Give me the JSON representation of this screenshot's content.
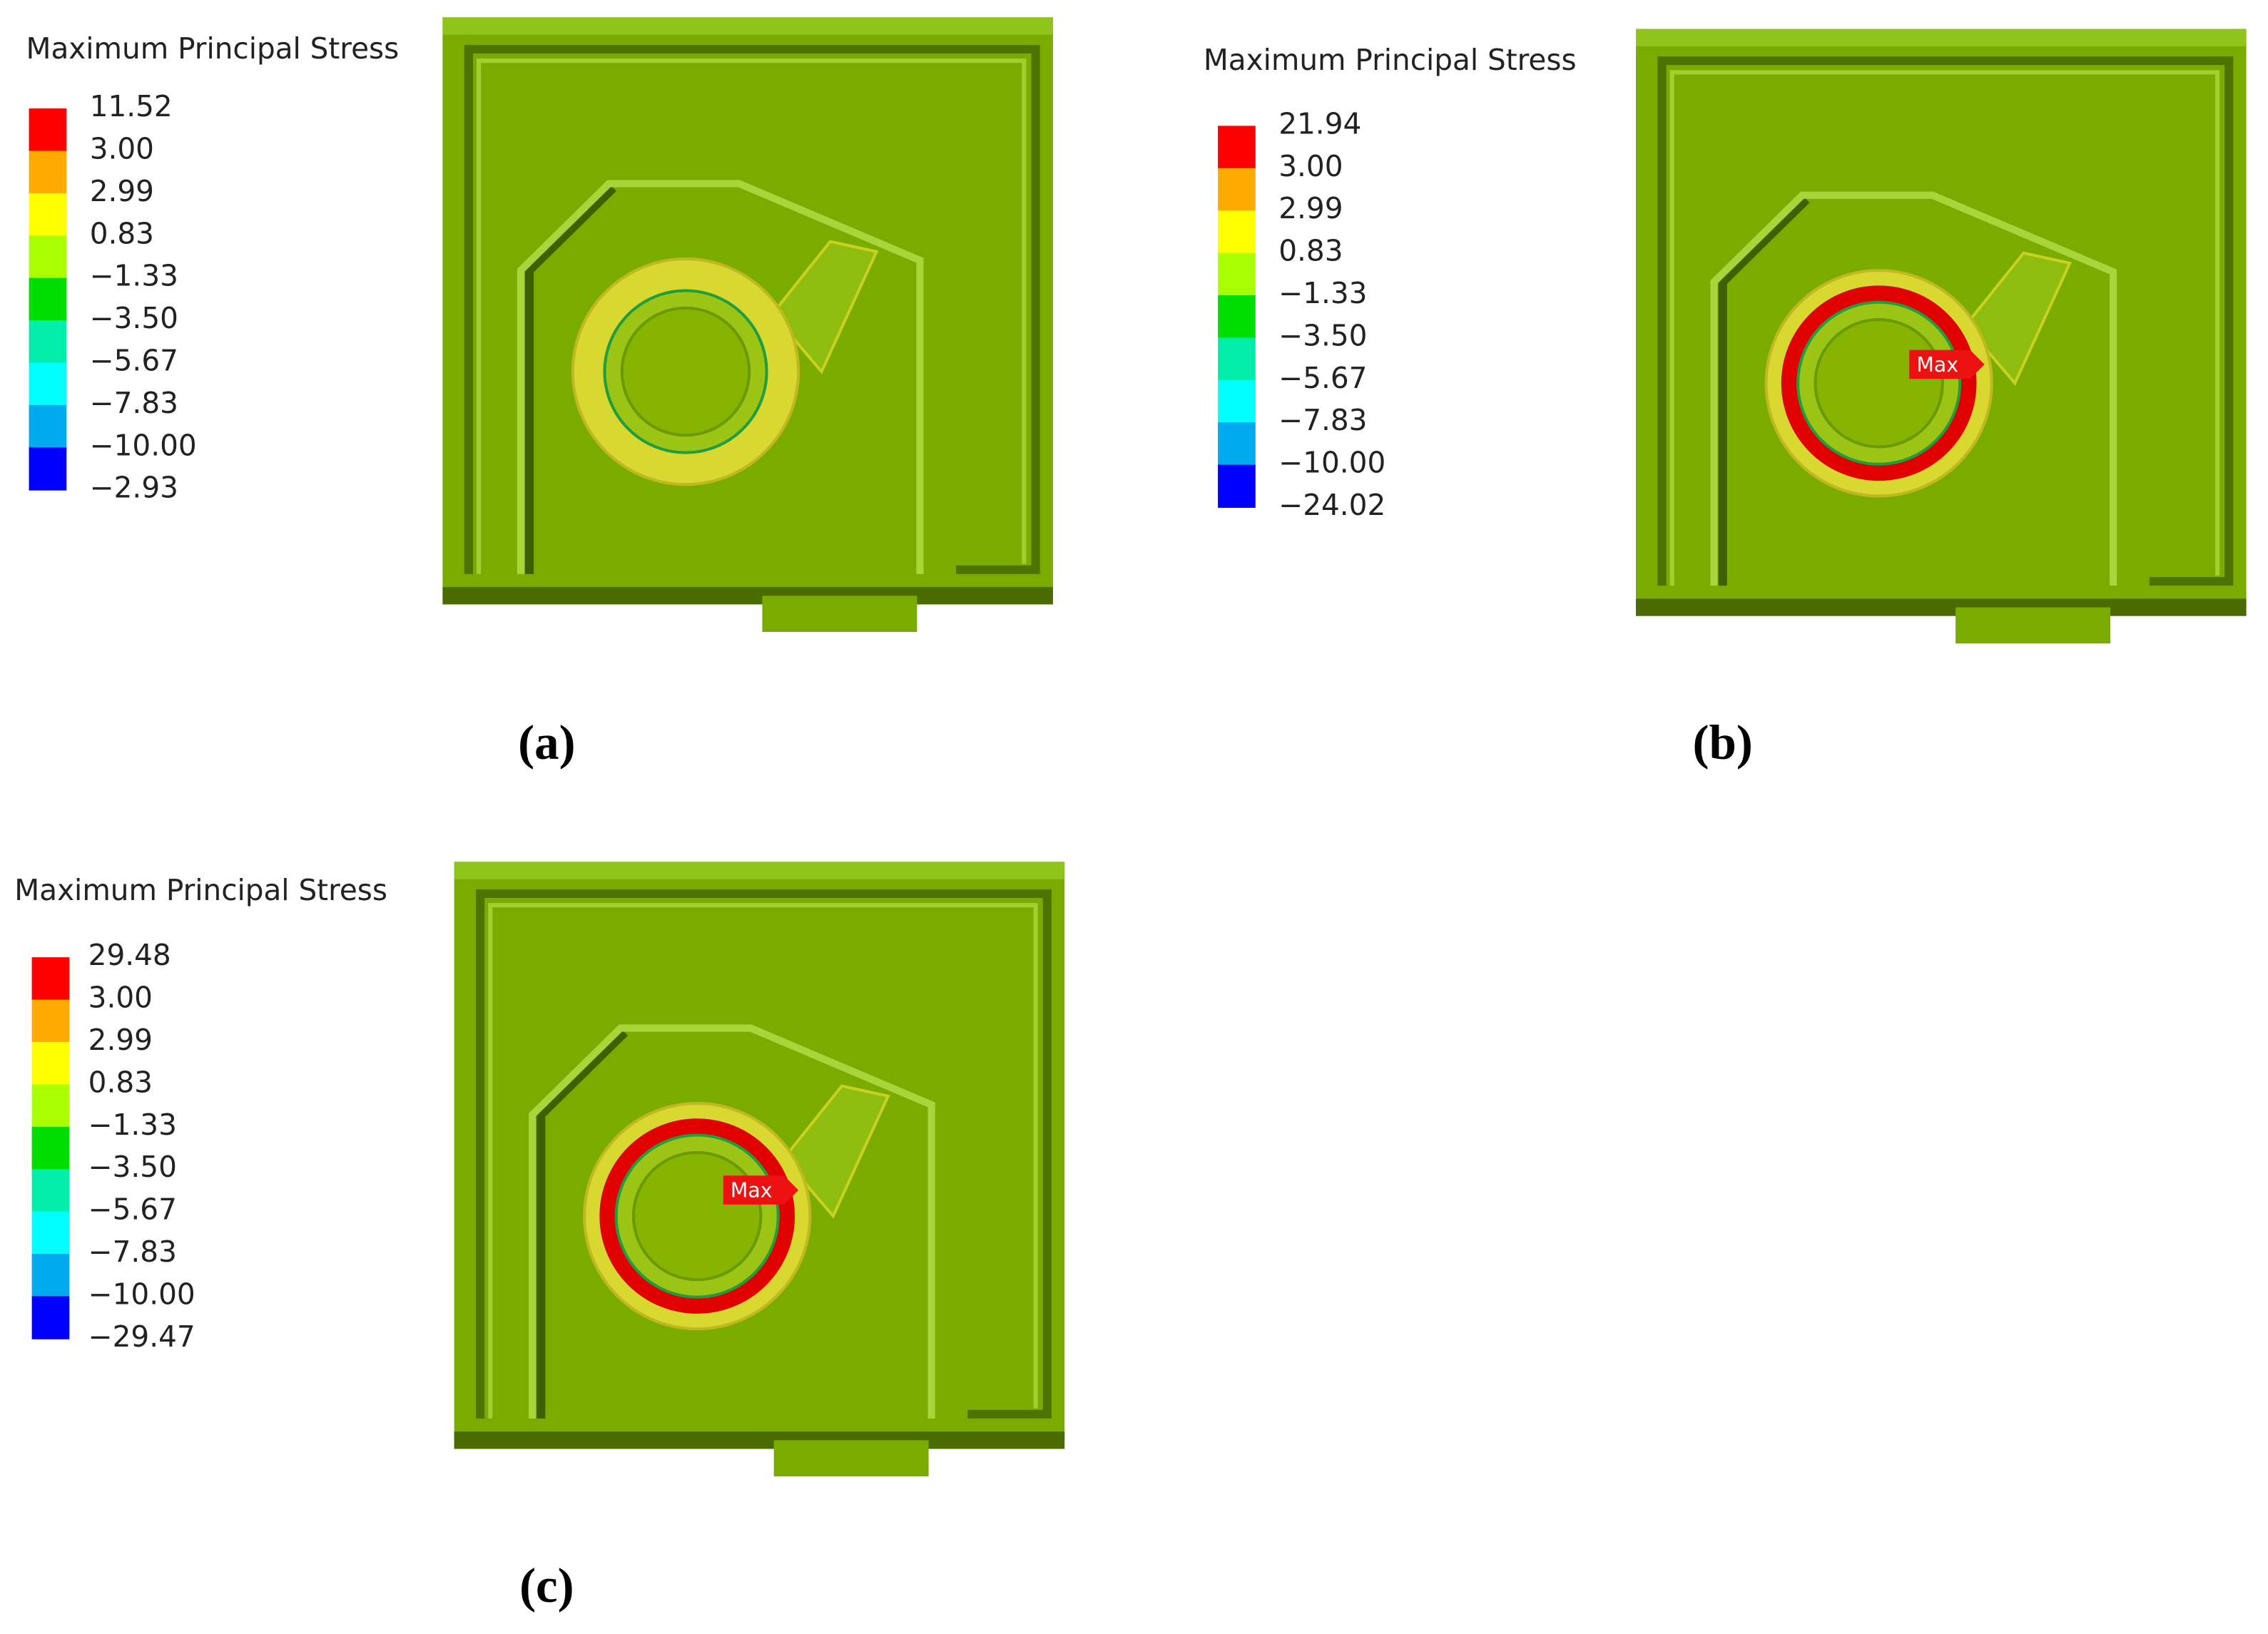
{
  "panels": [
    {
      "legend": {
        "title": "Maximum Principal Stress",
        "labels": [
          "11.52",
          "3.00",
          "2.99",
          "0.83",
          "−1.33",
          "−3.50",
          "−5.67",
          "−7.83",
          "−10.00",
          "−2.93"
        ]
      },
      "caption": "(a)"
    },
    {
      "legend": {
        "title": "Maximum Principal Stress",
        "labels": [
          "21.94",
          "3.00",
          "2.99",
          "0.83",
          "−1.33",
          "−3.50",
          "−5.67",
          "−7.83",
          "−10.00",
          "−24.02"
        ]
      },
      "max_label": "Max",
      "caption": "(b)"
    },
    {
      "legend": {
        "title": "Maximum Principal Stress",
        "labels": [
          "29.48",
          "3.00",
          "2.99",
          "0.83",
          "−1.33",
          "−3.50",
          "−5.67",
          "−7.83",
          "−10.00",
          "−29.47"
        ]
      },
      "max_label": "Max",
      "caption": "(c)"
    }
  ]
}
